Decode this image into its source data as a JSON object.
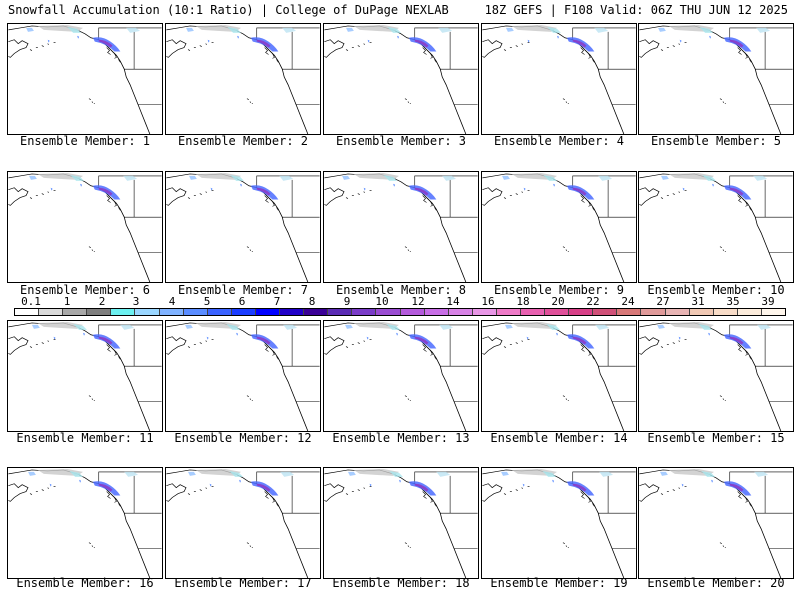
{
  "header": {
    "title": "Snowfall Accumulation (10:1 Ratio) | College of DuPage NEXLAB",
    "valid": "18Z GEFS | F108 Valid: 06Z THU JUN 12 2025"
  },
  "panels": [
    {
      "caption": "Ensemble Member: 1"
    },
    {
      "caption": "Ensemble Member: 2"
    },
    {
      "caption": "Ensemble Member: 3"
    },
    {
      "caption": "Ensemble Member: 4"
    },
    {
      "caption": "Ensemble Member: 5"
    },
    {
      "caption": "Ensemble Member: 6"
    },
    {
      "caption": "Ensemble Member: 7"
    },
    {
      "caption": "Ensemble Member: 8"
    },
    {
      "caption": "Ensemble Member: 9"
    },
    {
      "caption": "Ensemble Member: 10"
    },
    {
      "caption": "Ensemble Member: 11"
    },
    {
      "caption": "Ensemble Member: 12"
    },
    {
      "caption": "Ensemble Member: 13"
    },
    {
      "caption": "Ensemble Member: 14"
    },
    {
      "caption": "Ensemble Member: 15"
    },
    {
      "caption": "Ensemble Member: 16"
    },
    {
      "caption": "Ensemble Member: 17"
    },
    {
      "caption": "Ensemble Member: 18"
    },
    {
      "caption": "Ensemble Member: 19"
    },
    {
      "caption": "Ensemble Member: 20"
    }
  ],
  "colorbar": {
    "labels": [
      "0.1",
      "1",
      "2",
      "3",
      "4",
      "5",
      "6",
      "7",
      "8",
      "9",
      "10",
      "12",
      "14",
      "16",
      "18",
      "20",
      "22",
      "24",
      "27",
      "31",
      "35",
      "39"
    ],
    "colors": [
      "#ffffff",
      "#d9d9d9",
      "#a8a8a8",
      "#7f7f7f",
      "#6cf0f0",
      "#9ad6ff",
      "#7fb2ff",
      "#5a8cff",
      "#3a62ff",
      "#1a3cff",
      "#0000ff",
      "#2000c8",
      "#3a0096",
      "#5a2ab4",
      "#7a3cc8",
      "#9a4cd2",
      "#b45adc",
      "#c86ee6",
      "#d882e6",
      "#e896e6",
      "#ef7ac8",
      "#e860b0",
      "#e0509a",
      "#d84088",
      "#d05078",
      "#d87878",
      "#e09a9a",
      "#e8b4b4",
      "#f0c8b4",
      "#f8dcc8",
      "#fcecdc",
      "#fff6ec"
    ]
  }
}
